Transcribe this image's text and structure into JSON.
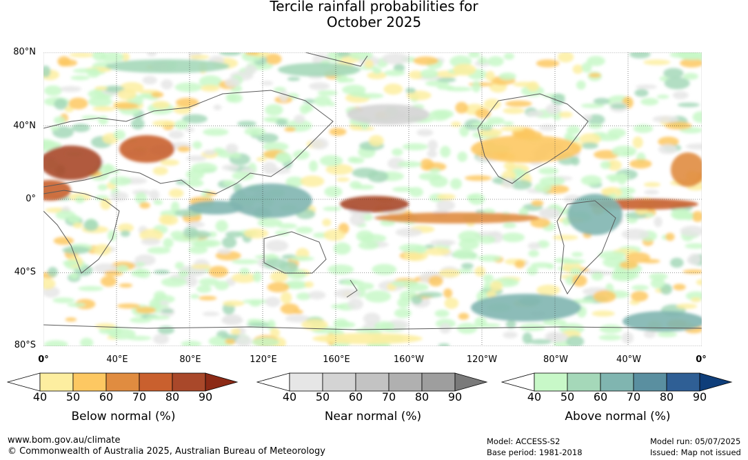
{
  "title": {
    "line1": "Tercile rainfall probabilities for",
    "line2": "October 2025"
  },
  "map": {
    "lat_labels": [
      "80°N",
      "40°N",
      "0°",
      "40°S",
      "80°S"
    ],
    "lon_labels": [
      "0°",
      "40°E",
      "80°E",
      "120°E",
      "160°E",
      "160°W",
      "120°W",
      "80°W",
      "40°W",
      "0°"
    ],
    "ocean_color": "#ffffff",
    "coastline_color": "#5a5a5a",
    "grid_style": "dotted"
  },
  "legends": [
    {
      "title": "Below normal (%)",
      "ticks": [
        "40",
        "50",
        "60",
        "70",
        "80",
        "90"
      ],
      "colors": [
        "#ffffff",
        "#fdeea0",
        "#fdc862",
        "#e08c40",
        "#c9602e",
        "#a9482a",
        "#8c2a16"
      ]
    },
    {
      "title": "Near normal (%)",
      "ticks": [
        "40",
        "50",
        "60",
        "70",
        "80",
        "90"
      ],
      "colors": [
        "#ffffff",
        "#e6e6e6",
        "#d4d4d4",
        "#c3c3c3",
        "#b0b0b0",
        "#9e9e9e",
        "#7a7a7a"
      ]
    },
    {
      "title": "Above normal (%)",
      "ticks": [
        "40",
        "50",
        "60",
        "70",
        "80",
        "90"
      ],
      "colors": [
        "#ffffff",
        "#c8f8c8",
        "#a5d8b9",
        "#80b5b0",
        "#5a8fa0",
        "#2f5f95",
        "#0f3e7a"
      ]
    }
  ],
  "footer": {
    "website": "www.bom.gov.au/climate",
    "copyright": "© Commonwealth of Australia 2025, Australian Bureau of Meteorology",
    "model": "Model: ACCESS-S2",
    "base_period": "Base period: 1981-2018",
    "model_run": "Model run: 05/07/2025",
    "issued": "Issued: Map not issued"
  }
}
